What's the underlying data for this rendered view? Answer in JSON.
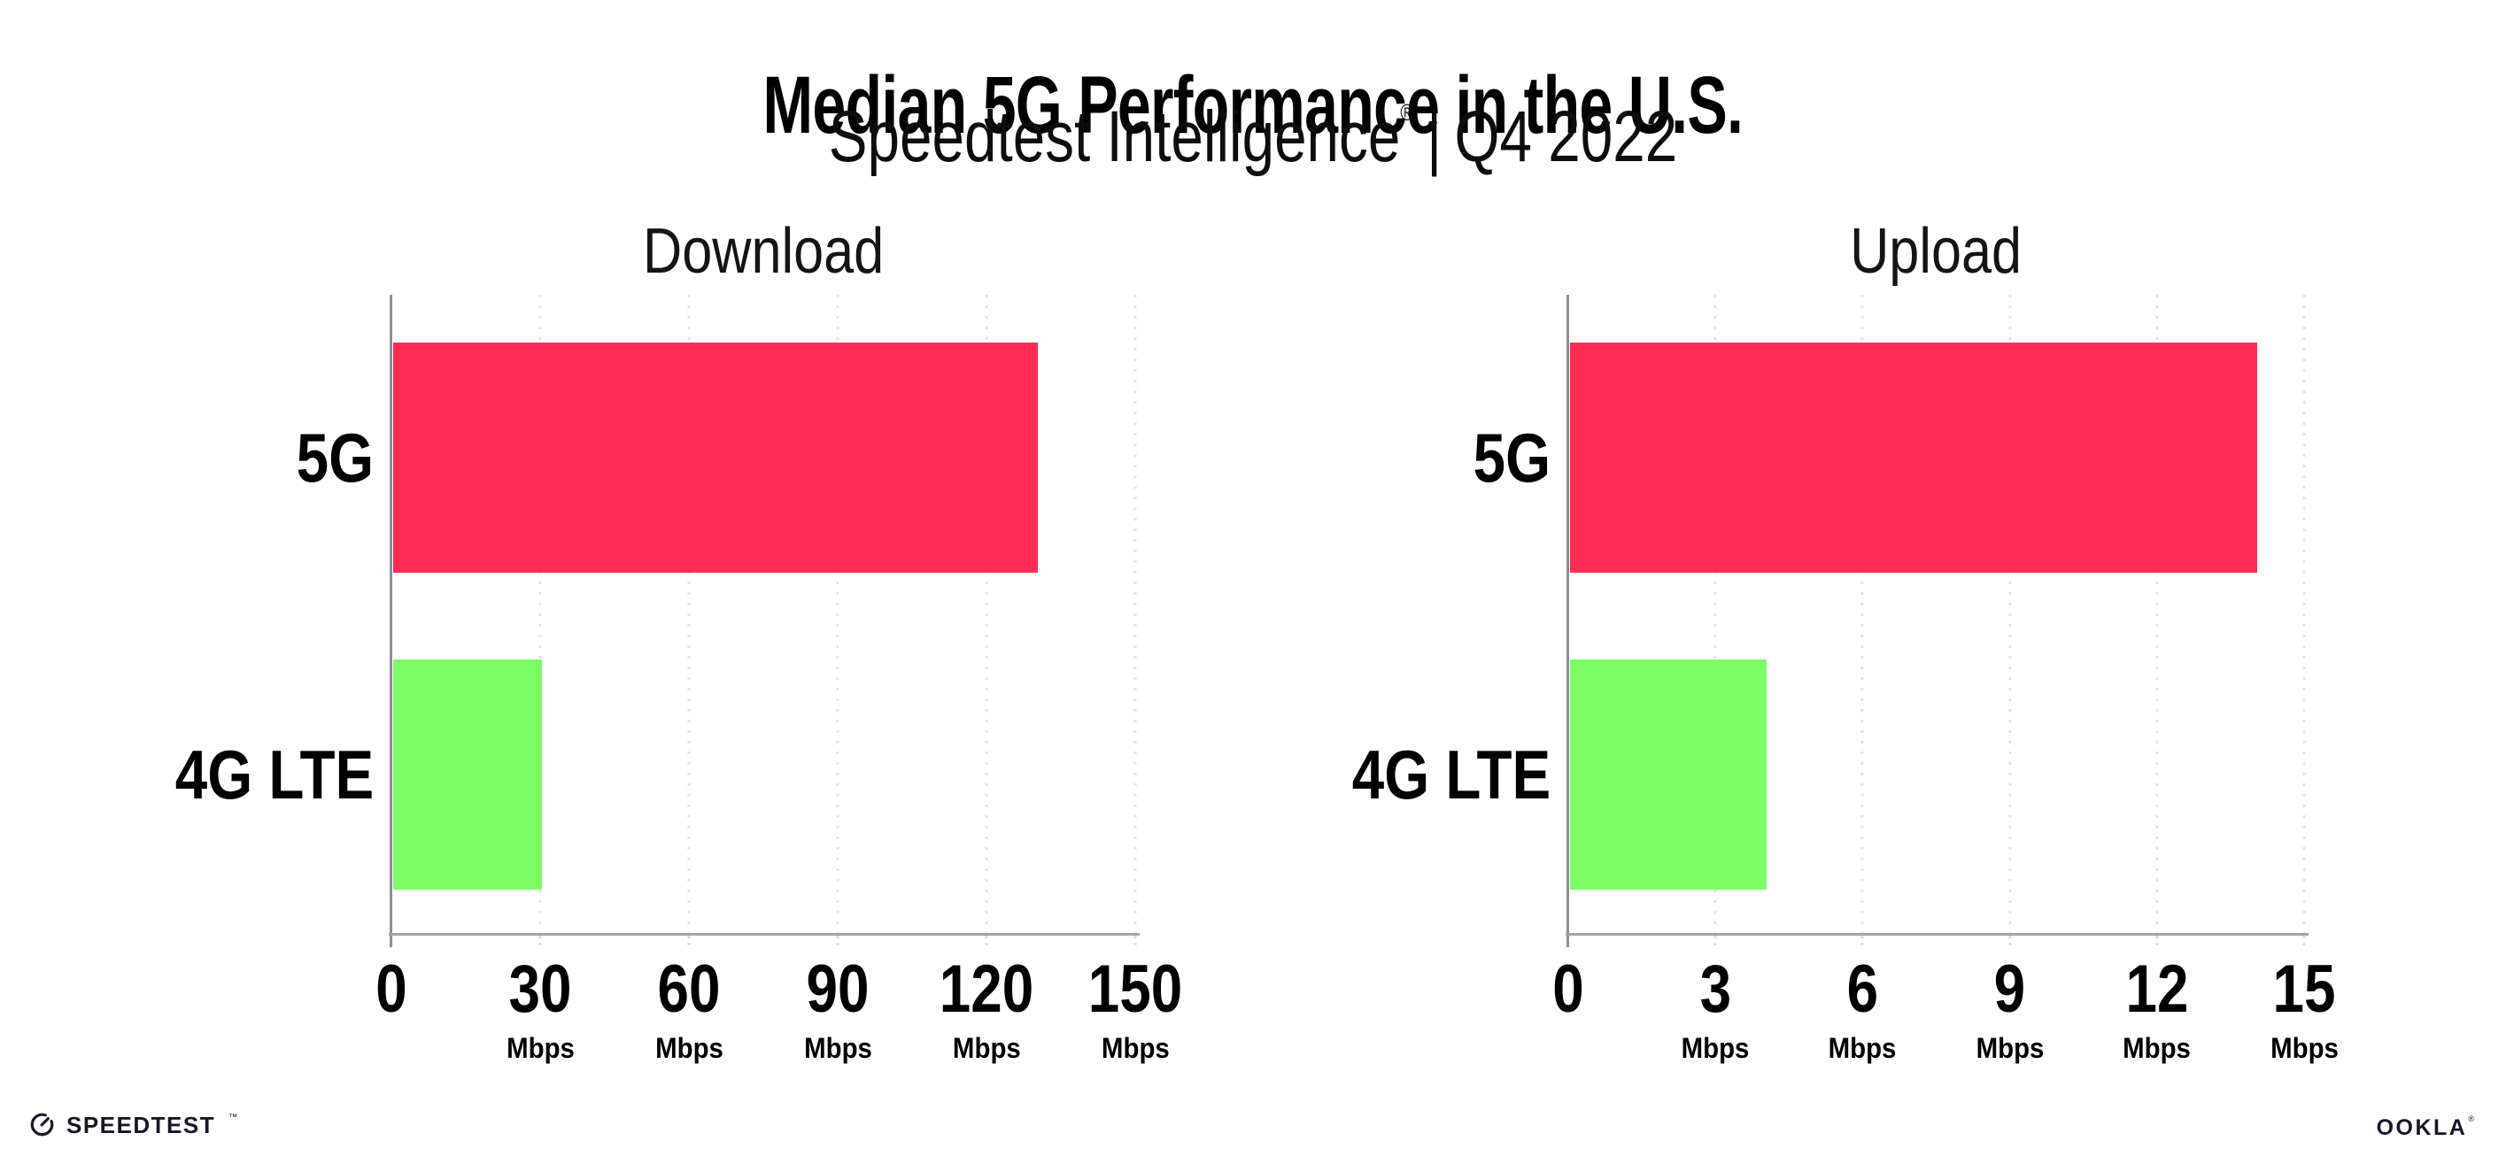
{
  "page": {
    "background": "#FFFFFF"
  },
  "header": {
    "title": "Median 5G Performance in the U.S.",
    "subtitle_brand": "Speedtest Intelligence",
    "subtitle_registered_mark": "®",
    "subtitle_separator": "|",
    "subtitle_period": "Q4 2022"
  },
  "footer": {
    "speedtest_wordmark": "SPEEDTEST",
    "speedtest_trademark": "™",
    "speedtest_icon": "speedtest-gauge-icon",
    "ookla_wordmark": "OOKLA",
    "ookla_registered_mark": "®"
  },
  "colors": {
    "bar_5g": "#FF2D55",
    "bar_4g_lte": "#7DFE65",
    "axis_line": "#8D8D95",
    "baseline": "#A2A2AA",
    "gridline_dots": "#E2E2EC",
    "text": "#000000",
    "logo": "#16162A"
  },
  "chart_data": [
    {
      "type": "bar",
      "orientation": "horizontal",
      "title": "Download",
      "categories": [
        "5G",
        "4G LTE"
      ],
      "values": [
        130,
        30
      ],
      "unit": "Mbps",
      "xlabel": "",
      "ylabel": "",
      "xlim": [
        0,
        150
      ],
      "xticks": [
        0,
        30,
        60,
        90,
        120,
        150
      ],
      "bar_colors": [
        "#FF2D55",
        "#7DFE65"
      ],
      "grid": "vertical dotted gridlines at each tick",
      "legend": "none"
    },
    {
      "type": "bar",
      "orientation": "horizontal",
      "title": "Upload",
      "categories": [
        "5G",
        "4G LTE"
      ],
      "values": [
        14,
        4
      ],
      "unit": "Mbps",
      "xlabel": "",
      "ylabel": "",
      "xlim": [
        0,
        15
      ],
      "xticks": [
        0,
        3,
        6,
        9,
        12,
        15
      ],
      "bar_colors": [
        "#FF2D55",
        "#7DFE65"
      ],
      "grid": "vertical dotted gridlines at each tick",
      "legend": "none"
    }
  ]
}
